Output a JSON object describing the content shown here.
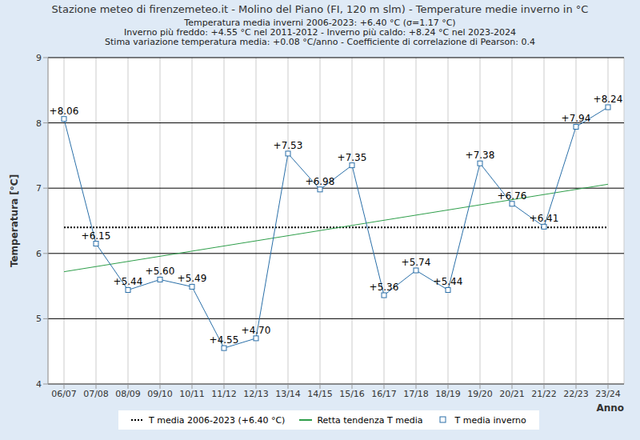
{
  "chart_data": {
    "type": "line",
    "title": "Stazione meteo di firenzemeteo.it - Molino del Piano (FI, 120 m slm) - Temperature medie inverno in °C",
    "subtitle": [
      "Temperatura media inverni 2006-2023: +6.40 °C (σ=1.17 °C)",
      "Inverno più freddo: +4.55 °C nel 2011-2012 - Inverno più caldo: +8.24 °C nel 2023-2024",
      "Stima variazione temperatura media: +0.08 °C/anno - Coefficiente di correlazione di Pearson: 0.4"
    ],
    "x_label": "Anno",
    "y_label": "Temperatura [°C]",
    "categories": [
      "06/07",
      "07/08",
      "08/09",
      "09/10",
      "10/11",
      "11/12",
      "12/13",
      "13/14",
      "14/15",
      "15/16",
      "16/17",
      "17/18",
      "18/19",
      "19/20",
      "20/21",
      "21/22",
      "22/23",
      "23/24"
    ],
    "series": [
      {
        "name": "T media 2006-2023 (+6.40 °C)",
        "color": "#000000",
        "line_style": "dotted",
        "values": [
          6.4,
          6.4,
          6.4,
          6.4,
          6.4,
          6.4,
          6.4,
          6.4,
          6.4,
          6.4,
          6.4,
          6.4,
          6.4,
          6.4,
          6.4,
          6.4,
          6.4,
          6.4
        ]
      },
      {
        "name": "Retta tendenza T media",
        "color": "#2e9e4a",
        "line_style": "solid",
        "values": [
          5.72,
          null,
          null,
          null,
          null,
          null,
          null,
          null,
          null,
          null,
          null,
          null,
          null,
          null,
          null,
          null,
          null,
          7.06
        ]
      },
      {
        "name": "T media inverno",
        "color": "#2a6fa8",
        "line_style": "solid",
        "marker": "square",
        "values": [
          8.06,
          6.15,
          5.44,
          5.6,
          5.49,
          4.55,
          4.7,
          7.53,
          6.98,
          7.35,
          5.36,
          5.74,
          5.44,
          7.38,
          6.76,
          6.41,
          7.94,
          8.24
        ],
        "value_labels": [
          "+8.06",
          "+6.15",
          "+5.44",
          "+5.60",
          "+5.49",
          "+4.55",
          "+4.70",
          "+7.53",
          "+6.98",
          "+7.35",
          "+5.36",
          "+5.74",
          "+5.44",
          "+7.38",
          "+6.76",
          "+6.41",
          "+7.94",
          "+8.24"
        ]
      }
    ],
    "ylim": [
      4,
      9
    ],
    "yticks": [
      4,
      5,
      6,
      7,
      8,
      9
    ],
    "grid": true,
    "data_labels": true,
    "legend": "bottom"
  }
}
